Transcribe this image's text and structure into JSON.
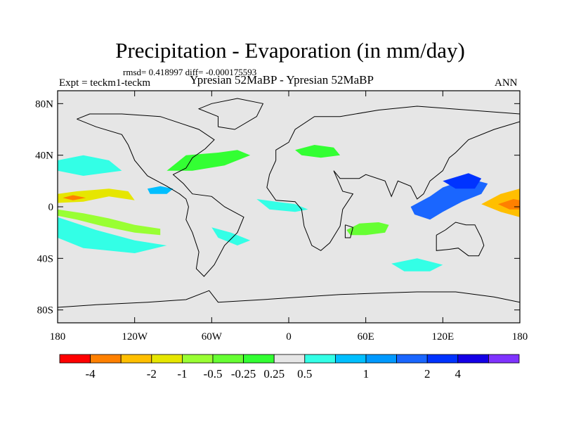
{
  "chart_data": {
    "type": "heatmap",
    "title": "Precipitation - Evaporation (in mm/day)",
    "stats_line": "rmsd= 0.418997 diff= -0.000175593",
    "experiment_label": "Expt = teckm1-teckm",
    "subtitle": "Ypresian  52MaBP - Ypresian  52MaBP",
    "season": "ANN",
    "x_axis": {
      "range": [
        -180,
        180
      ],
      "ticks": [
        -180,
        -120,
        -60,
        0,
        60,
        120,
        180
      ],
      "tick_labels": [
        "180",
        "120W",
        "60W",
        "0",
        "60E",
        "120E",
        "180"
      ]
    },
    "y_axis": {
      "range": [
        -90,
        90
      ],
      "ticks": [
        80,
        40,
        0,
        -40,
        -80
      ],
      "tick_labels": [
        "80N",
        "40N",
        "0",
        "40S",
        "80S"
      ]
    },
    "colorbar": {
      "colors": [
        "#ff0000",
        "#ff8000",
        "#ffbf00",
        "#e6e600",
        "#99ff33",
        "#66ff33",
        "#33ff33",
        "#e6e6e6",
        "#33ffe6",
        "#00bfff",
        "#0099ff",
        "#1a66ff",
        "#0033ff",
        "#1400e6",
        "#7f33ff"
      ],
      "labels": [
        "-4",
        "-2",
        "-1",
        "-0.5",
        "-0.25",
        "0.25",
        "0.5",
        "1",
        "2",
        "4"
      ],
      "label_after_box": [
        1,
        3,
        4,
        5,
        6,
        7,
        8,
        10,
        12,
        13
      ]
    },
    "anomaly_regions": [
      {
        "name": "east-pacific-north-band",
        "level": -1,
        "color": "#e6e600",
        "points": [
          [
            -180,
            10
          ],
          [
            -165,
            12
          ],
          [
            -140,
            14
          ],
          [
            -125,
            12
          ],
          [
            -120,
            5
          ],
          [
            -140,
            8
          ],
          [
            -160,
            4
          ],
          [
            -180,
            3
          ]
        ]
      },
      {
        "name": "east-pacific-north-core",
        "level": -4,
        "color": "#ff8000",
        "points": [
          [
            -176,
            7
          ],
          [
            -168,
            9
          ],
          [
            -158,
            7
          ],
          [
            -168,
            5
          ]
        ]
      },
      {
        "name": "east-pacific-south-band",
        "level": -0.5,
        "color": "#99ff33",
        "points": [
          [
            -180,
            -2
          ],
          [
            -160,
            -5
          ],
          [
            -140,
            -9
          ],
          [
            -120,
            -14
          ],
          [
            -100,
            -17
          ],
          [
            -100,
            -22
          ],
          [
            -120,
            -20
          ],
          [
            -145,
            -15
          ],
          [
            -165,
            -10
          ],
          [
            -180,
            -7
          ]
        ]
      },
      {
        "name": "west-pacific-positive-lobe",
        "level": 1,
        "color": "#1a66ff",
        "points": [
          [
            95,
            0
          ],
          [
            110,
            8
          ],
          [
            120,
            15
          ],
          [
            140,
            22
          ],
          [
            155,
            18
          ],
          [
            150,
            10
          ],
          [
            135,
            4
          ],
          [
            120,
            -4
          ],
          [
            110,
            -10
          ],
          [
            98,
            -6
          ]
        ]
      },
      {
        "name": "dateline-positive-tongue",
        "level": 2,
        "color": "#0033ff",
        "points": [
          [
            120,
            20
          ],
          [
            140,
            26
          ],
          [
            150,
            22
          ],
          [
            145,
            14
          ],
          [
            130,
            14
          ]
        ]
      },
      {
        "name": "dateline-negative-wedge",
        "level": -2,
        "color": "#ffbf00",
        "points": [
          [
            150,
            2
          ],
          [
            165,
            10
          ],
          [
            180,
            14
          ],
          [
            180,
            -8
          ],
          [
            165,
            -4
          ]
        ]
      },
      {
        "name": "dateline-negative-core",
        "level": -4,
        "color": "#ff8000",
        "points": [
          [
            163,
            2
          ],
          [
            175,
            6
          ],
          [
            180,
            5
          ],
          [
            180,
            -2
          ],
          [
            172,
            -2
          ]
        ]
      },
      {
        "name": "north-america-east",
        "level": -0.5,
        "color": "#33ff33",
        "points": [
          [
            -95,
            28
          ],
          [
            -80,
            40
          ],
          [
            -55,
            42
          ],
          [
            -40,
            44
          ],
          [
            -30,
            40
          ],
          [
            -50,
            32
          ],
          [
            -75,
            28
          ]
        ]
      },
      {
        "name": "north-atlantic-europe",
        "level": -0.5,
        "color": "#33ff33",
        "points": [
          [
            5,
            44
          ],
          [
            20,
            48
          ],
          [
            35,
            46
          ],
          [
            40,
            40
          ],
          [
            25,
            38
          ],
          [
            10,
            40
          ]
        ]
      },
      {
        "name": "indian-ocean-south",
        "level": -0.5,
        "color": "#66ff33",
        "points": [
          [
            45,
            -18
          ],
          [
            55,
            -13
          ],
          [
            70,
            -12
          ],
          [
            78,
            -14
          ],
          [
            75,
            -20
          ],
          [
            60,
            -22
          ],
          [
            48,
            -22
          ]
        ]
      },
      {
        "name": "central-america-positive",
        "level": 0.5,
        "color": "#00bfff",
        "points": [
          [
            -110,
            14
          ],
          [
            -100,
            16
          ],
          [
            -90,
            14
          ],
          [
            -95,
            10
          ],
          [
            -108,
            10
          ]
        ]
      },
      {
        "name": "equatorial-atlantic-positive",
        "level": 0.5,
        "color": "#33ffe6",
        "points": [
          [
            -25,
            6
          ],
          [
            -10,
            4
          ],
          [
            5,
            2
          ],
          [
            15,
            -2
          ],
          [
            5,
            -4
          ],
          [
            -15,
            -2
          ]
        ]
      },
      {
        "name": "south-atlantic-positive",
        "level": 0.5,
        "color": "#33ffe6",
        "points": [
          [
            -60,
            -16
          ],
          [
            -45,
            -20
          ],
          [
            -30,
            -26
          ],
          [
            -40,
            -30
          ],
          [
            -55,
            -24
          ]
        ]
      },
      {
        "name": "southern-ocean-indian",
        "level": 0.5,
        "color": "#33ffe6",
        "points": [
          [
            80,
            -44
          ],
          [
            100,
            -40
          ],
          [
            120,
            -45
          ],
          [
            110,
            -50
          ],
          [
            90,
            -50
          ]
        ]
      },
      {
        "name": "north-pacific-positive",
        "level": 0.5,
        "color": "#33ffe6",
        "points": [
          [
            -180,
            36
          ],
          [
            -160,
            40
          ],
          [
            -140,
            36
          ],
          [
            -130,
            28
          ],
          [
            -160,
            24
          ],
          [
            -180,
            28
          ]
        ]
      },
      {
        "name": "south-pacific-positive",
        "level": 0.5,
        "color": "#33ffe6",
        "points": [
          [
            -180,
            -8
          ],
          [
            -150,
            -18
          ],
          [
            -120,
            -26
          ],
          [
            -95,
            -30
          ],
          [
            -120,
            -36
          ],
          [
            -160,
            -32
          ],
          [
            -180,
            -24
          ]
        ]
      }
    ],
    "contour_lines": [
      {
        "name": "americas",
        "points": [
          [
            -165,
            68
          ],
          [
            -150,
            62
          ],
          [
            -130,
            56
          ],
          [
            -125,
            48
          ],
          [
            -120,
            36
          ],
          [
            -110,
            24
          ],
          [
            -95,
            16
          ],
          [
            -85,
            10
          ],
          [
            -80,
            6
          ],
          [
            -78,
            0
          ],
          [
            -80,
            -10
          ],
          [
            -75,
            -20
          ],
          [
            -70,
            -35
          ],
          [
            -72,
            -48
          ],
          [
            -66,
            -54
          ],
          [
            -58,
            -45
          ],
          [
            -50,
            -30
          ],
          [
            -40,
            -20
          ],
          [
            -35,
            -8
          ],
          [
            -50,
            0
          ],
          [
            -60,
            8
          ],
          [
            -75,
            10
          ],
          [
            -82,
            18
          ],
          [
            -90,
            25
          ],
          [
            -80,
            30
          ],
          [
            -75,
            38
          ],
          [
            -65,
            45
          ],
          [
            -58,
            52
          ],
          [
            -70,
            60
          ],
          [
            -85,
            65
          ],
          [
            -100,
            70
          ],
          [
            -130,
            72
          ],
          [
            -155,
            72
          ],
          [
            -165,
            68
          ]
        ]
      },
      {
        "name": "greenland",
        "points": [
          [
            -55,
            62
          ],
          [
            -42,
            60
          ],
          [
            -25,
            70
          ],
          [
            -20,
            80
          ],
          [
            -40,
            84
          ],
          [
            -60,
            80
          ],
          [
            -70,
            76
          ],
          [
            -55,
            70
          ],
          [
            -55,
            62
          ]
        ]
      },
      {
        "name": "afro-eurasia",
        "points": [
          [
            -10,
            36
          ],
          [
            -15,
            25
          ],
          [
            -17,
            15
          ],
          [
            -10,
            5
          ],
          [
            5,
            4
          ],
          [
            10,
            -2
          ],
          [
            12,
            -15
          ],
          [
            18,
            -30
          ],
          [
            25,
            -34
          ],
          [
            32,
            -28
          ],
          [
            40,
            -15
          ],
          [
            42,
            -2
          ],
          [
            50,
            10
          ],
          [
            42,
            12
          ],
          [
            35,
            28
          ],
          [
            40,
            22
          ],
          [
            55,
            22
          ],
          [
            60,
            25
          ],
          [
            75,
            20
          ],
          [
            80,
            8
          ],
          [
            85,
            20
          ],
          [
            95,
            16
          ],
          [
            100,
            6
          ],
          [
            105,
            10
          ],
          [
            110,
            20
          ],
          [
            120,
            28
          ],
          [
            125,
            38
          ],
          [
            130,
            42
          ],
          [
            140,
            52
          ],
          [
            160,
            60
          ],
          [
            180,
            66
          ],
          [
            180,
            72
          ],
          [
            140,
            75
          ],
          [
            100,
            78
          ],
          [
            70,
            75
          ],
          [
            40,
            70
          ],
          [
            20,
            70
          ],
          [
            5,
            60
          ],
          [
            0,
            50
          ],
          [
            -10,
            44
          ],
          [
            -10,
            36
          ]
        ]
      },
      {
        "name": "madagascar",
        "points": [
          [
            44,
            -14
          ],
          [
            50,
            -16
          ],
          [
            48,
            -24
          ],
          [
            44,
            -24
          ],
          [
            44,
            -14
          ]
        ]
      },
      {
        "name": "australia",
        "points": [
          [
            115,
            -22
          ],
          [
            122,
            -18
          ],
          [
            130,
            -12
          ],
          [
            138,
            -14
          ],
          [
            145,
            -14
          ],
          [
            150,
            -24
          ],
          [
            152,
            -30
          ],
          [
            148,
            -38
          ],
          [
            140,
            -38
          ],
          [
            132,
            -32
          ],
          [
            125,
            -33
          ],
          [
            115,
            -34
          ],
          [
            115,
            -22
          ]
        ]
      },
      {
        "name": "antarctica",
        "points": [
          [
            -180,
            -78
          ],
          [
            -150,
            -76
          ],
          [
            -110,
            -74
          ],
          [
            -80,
            -72
          ],
          [
            -62,
            -65
          ],
          [
            -55,
            -74
          ],
          [
            -20,
            -72
          ],
          [
            10,
            -70
          ],
          [
            40,
            -68
          ],
          [
            70,
            -67
          ],
          [
            100,
            -66
          ],
          [
            130,
            -66
          ],
          [
            160,
            -70
          ],
          [
            180,
            -74
          ]
        ]
      }
    ]
  }
}
